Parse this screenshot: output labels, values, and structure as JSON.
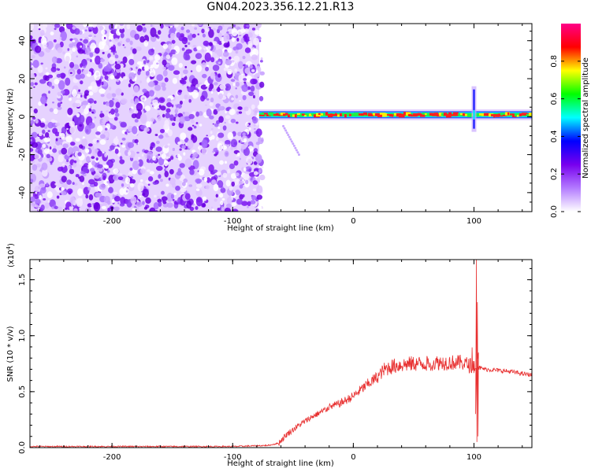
{
  "title": "GN04.2023.356.12.21.R13",
  "chart_data": [
    {
      "type": "heatmap",
      "title": "GN04.2023.356.12.21.R13",
      "xlabel": "Height of straight line (km)",
      "ylabel": "Frequency (Hz)",
      "xlim": [
        -268,
        148
      ],
      "ylim": [
        -50,
        49
      ],
      "x_ticks": [
        -200,
        -100,
        0,
        100
      ],
      "y_ticks": [
        -40,
        -20,
        0,
        20,
        40
      ],
      "noise_region_x": [
        -268,
        -78
      ],
      "signal_track": {
        "frequency": 1,
        "x_start": -78,
        "x_end": 148,
        "spike_x": 100,
        "spike_freq_range": [
          -8,
          16
        ]
      },
      "diagonal_trace": {
        "x": [
          -58,
          -45
        ],
        "freq": [
          -5,
          -20
        ]
      },
      "colorbar": {
        "label": "Normalized spectral amplitude",
        "range": [
          0.0,
          1.0
        ],
        "ticks": [
          "0.0",
          "0.2",
          "0.4",
          "0.6",
          "0.8"
        ],
        "colors": [
          "#ffffff",
          "#b37bff",
          "#7700ee",
          "#0000ff",
          "#00ffff",
          "#00ff00",
          "#ffff00",
          "#ff0000",
          "#ff0088"
        ]
      }
    },
    {
      "type": "line",
      "xlabel": "Height of straight line (km)",
      "ylabel": "SNR (10 * v/v)",
      "exponent_label": "(x10",
      "exponent_power": "4",
      "exponent_close": ")",
      "xlim": [
        -268,
        148
      ],
      "ylim": [
        0,
        1.68
      ],
      "x_ticks": [
        -200,
        -100,
        0,
        100
      ],
      "y_ticks": [
        "0.0",
        "0.5",
        "1.0",
        "1.5"
      ],
      "y_tick_values": [
        0.0,
        0.5,
        1.0,
        1.5
      ],
      "series": [
        {
          "color": "#e83030",
          "x": [
            -268,
            -200,
            -100,
            -70,
            -62,
            -55,
            -45,
            -35,
            -25,
            -20,
            -10,
            0,
            10,
            20,
            25,
            30,
            40,
            50,
            60,
            70,
            80,
            90,
            95,
            100,
            103,
            105,
            110,
            120,
            130,
            140,
            148
          ],
          "y": [
            0.01,
            0.01,
            0.01,
            0.02,
            0.04,
            0.12,
            0.2,
            0.27,
            0.33,
            0.36,
            0.4,
            0.46,
            0.55,
            0.63,
            0.69,
            0.72,
            0.74,
            0.75,
            0.75,
            0.76,
            0.76,
            0.76,
            0.74,
            0.73,
            0.72,
            0.71,
            0.7,
            0.69,
            0.68,
            0.66,
            0.65
          ]
        }
      ]
    }
  ]
}
